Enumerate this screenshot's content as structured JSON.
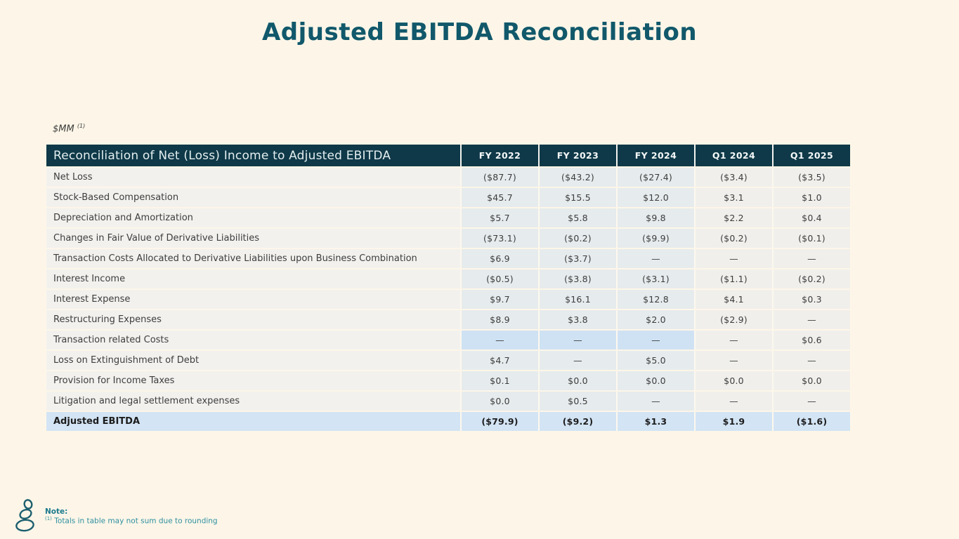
{
  "page": {
    "title": "Adjusted EBITDA Reconciliation",
    "units_label": "$MM",
    "units_superscript": "(1)"
  },
  "table": {
    "header": {
      "label": "Reconciliation of Net (Loss) Income to Adjusted EBITDA",
      "columns": [
        "FY 2022",
        "FY 2023",
        "FY 2024",
        "Q1 2024",
        "Q1 2025"
      ]
    },
    "rows": [
      {
        "label": "Net Loss",
        "values": [
          "($87.7)",
          "($43.2)",
          "($27.4)",
          "($3.4)",
          "($3.5)"
        ]
      },
      {
        "label": "Stock-Based Compensation",
        "values": [
          "$45.7",
          "$15.5",
          "$12.0",
          "$3.1",
          "$1.0"
        ]
      },
      {
        "label": "Depreciation and Amortization",
        "values": [
          "$5.7",
          "$5.8",
          "$9.8",
          "$2.2",
          "$0.4"
        ]
      },
      {
        "label": "Changes in Fair Value of Derivative Liabilities",
        "values": [
          "($73.1)",
          "($0.2)",
          "($9.9)",
          "($0.2)",
          "($0.1)"
        ]
      },
      {
        "label": "Transaction Costs Allocated to Derivative Liabilities upon Business Combination",
        "values": [
          "$6.9",
          "($3.7)",
          "—",
          "—",
          "—"
        ]
      },
      {
        "label": "Interest Income",
        "values": [
          "($0.5)",
          "($3.8)",
          "($3.1)",
          "($1.1)",
          "($0.2)"
        ]
      },
      {
        "label": "Interest Expense",
        "values": [
          "$9.7",
          "$16.1",
          "$12.8",
          "$4.1",
          "$0.3"
        ]
      },
      {
        "label": "Restructuring Expenses",
        "values": [
          "$8.9",
          "$3.8",
          "$2.0",
          "($2.9)",
          "—"
        ]
      },
      {
        "label": "Transaction related Costs",
        "values": [
          "—",
          "—",
          "—",
          "—",
          "$0.6"
        ],
        "highlight_cells": [
          0,
          1,
          2
        ]
      },
      {
        "label": "Loss on Extinguishment of Debt",
        "values": [
          "$4.7",
          "—",
          "$5.0",
          "—",
          "—"
        ]
      },
      {
        "label": "Provision for Income Taxes",
        "values": [
          "$0.1",
          "$0.0",
          "$0.0",
          "$0.0",
          "$0.0"
        ]
      },
      {
        "label": "Litigation and legal settlement expenses",
        "values": [
          "$0.0",
          "$0.5",
          "—",
          "—",
          "—"
        ]
      },
      {
        "label": "Adjusted EBITDA",
        "values": [
          "($79.9)",
          "($9.2)",
          "$1.3",
          "$1.9",
          "($1.6)"
        ],
        "total": true
      }
    ]
  },
  "footer": {
    "note_label": "Note:",
    "note_superscript": "(1)",
    "note_text": "Totals in table may not sum due to rounding",
    "logo": "stacked-pebbles-logo"
  },
  "colors": {
    "background": "#fdf6e8",
    "title": "#11586b",
    "header_bg": "#0f3948",
    "fy_cell_bg": "#e6ebed",
    "q_cell_bg": "#f0efec",
    "highlight_cell_bg": "#cfe2f4",
    "total_row_bg": "#d3e4f4",
    "note_teal": "#2f8fa0"
  }
}
